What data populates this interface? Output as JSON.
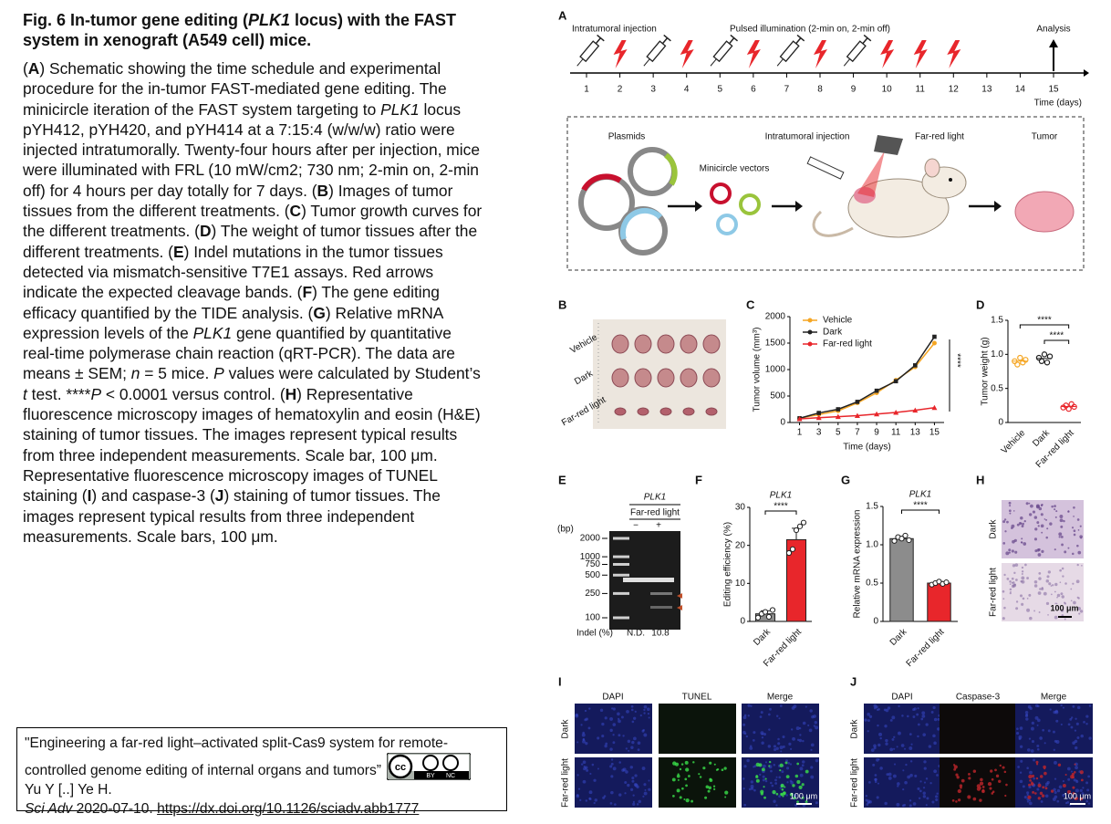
{
  "caption": {
    "title": [
      {
        "text": "Fig. 6 In-tumor gene editing ("
      },
      {
        "text": "PLK1",
        "style": "i"
      },
      {
        "text": " locus) with the FAST system in xenograft (A549 cell) mice."
      }
    ],
    "body": [
      {
        "text": "("
      },
      {
        "text": "A",
        "style": "b"
      },
      {
        "text": ") Schematic showing the time schedule and experimental procedure for the in-tumor FAST-mediated gene editing. The minicircle iteration of the FAST system targeting to "
      },
      {
        "text": "PLK1",
        "style": "i"
      },
      {
        "text": " locus pYH412, pYH420, and pYH414 at a 7:15:4 (w/w/w) ratio were injected intratumorally. Twenty-four hours after per injection, mice were illuminated with FRL (10 mW/cm2; 730 nm; 2-min on, 2-min off) for 4 hours per day totally for 7 days. ("
      },
      {
        "text": "B",
        "style": "b"
      },
      {
        "text": ") Images of tumor tissues from the different treatments. ("
      },
      {
        "text": "C",
        "style": "b"
      },
      {
        "text": ") Tumor growth curves for the different treatments. ("
      },
      {
        "text": "D",
        "style": "b"
      },
      {
        "text": ") The weight of tumor tissues after the different treatments. ("
      },
      {
        "text": "E",
        "style": "b"
      },
      {
        "text": ") Indel mutations in the tumor tissues detected via mismatch-sensitive T7E1 assays. Red arrows indicate the expected cleavage bands. ("
      },
      {
        "text": "F",
        "style": "b"
      },
      {
        "text": ") The gene editing efficacy quantified by the TIDE analysis. ("
      },
      {
        "text": "G",
        "style": "b"
      },
      {
        "text": ") Relative mRNA expression levels of the "
      },
      {
        "text": "PLK1",
        "style": "i"
      },
      {
        "text": " gene quantified by quantitative real-time polymerase chain reaction (qRT-PCR). The data are means ± SEM; "
      },
      {
        "text": "n",
        "style": "i"
      },
      {
        "text": " = 5 mice. "
      },
      {
        "text": "P",
        "style": "i"
      },
      {
        "text": " values were calculated by Student’s "
      },
      {
        "text": "t",
        "style": "i"
      },
      {
        "text": " test. ****"
      },
      {
        "text": "P",
        "style": "i"
      },
      {
        "text": " < 0.0001 versus control. ("
      },
      {
        "text": "H",
        "style": "b"
      },
      {
        "text": ") Representative fluorescence microscopy images of hematoxylin and eosin (H&E) staining of tumor tissues. The images represent typical results from three independent measurements. Scale bar, 100 μm. Representative fluorescence microscopy images of TUNEL staining ("
      },
      {
        "text": "I",
        "style": "b"
      },
      {
        "text": ") and caspase-3 ("
      },
      {
        "text": "J",
        "style": "b"
      },
      {
        "text": ") staining of tumor tissues. The images represent typical results from three independent measurements. Scale bars, 100 μm."
      }
    ]
  },
  "citation": {
    "title": "\"Engineering a far-red light–activated split-Cas9 system for remote-controlled genome editing of internal organs and tumors”",
    "authors": "Yu Y [..] Ye H.",
    "journal": "Sci Adv",
    "date": "2020-07-10.",
    "doi": "https://dx.doi.org/10.1126/sciadv.abb1777",
    "license": [
      "BY",
      "NC"
    ]
  },
  "figure": {
    "timeline": {
      "panel": "A",
      "header": [
        "Intratumoral injection",
        "Pulsed illumination (2-min on, 2-min off)",
        "Analysis"
      ],
      "days": [
        1,
        2,
        3,
        4,
        5,
        6,
        7,
        8,
        9,
        10,
        11,
        12,
        13,
        14,
        15
      ],
      "injection_days": [
        1,
        3,
        5,
        7,
        9
      ],
      "illumination_days": [
        2,
        4,
        6,
        8,
        10,
        11,
        12
      ],
      "analysis_day": 15,
      "x_label": "Time (days)"
    },
    "schematic": {
      "labels": [
        "Plasmids",
        "Minicircle vectors",
        "Intratumoral injection",
        "Far-red light",
        "Tumor"
      ]
    },
    "photo": {
      "panel": "B",
      "rows": [
        "Vehicle",
        "Dark",
        "Far-red light"
      ]
    },
    "gel": {
      "panel": "E",
      "title": "PLK1",
      "group": "Far-red light",
      "lanes": [
        "−",
        "+"
      ],
      "unit": "(bp)",
      "ladder": [
        2000,
        1000,
        750,
        500,
        250,
        100
      ],
      "indel_label": "Indel (%)",
      "indel": [
        "N.D.",
        "10.8"
      ]
    },
    "he": {
      "panel": "H",
      "rows": [
        "Dark",
        "Far-red light"
      ],
      "scale": "100 μm"
    },
    "tunel": {
      "panel": "I",
      "columns": [
        "DAPI",
        "TUNEL",
        "Merge"
      ],
      "rows": [
        "Dark",
        "Far-red light"
      ],
      "scale": "100 μm"
    },
    "caspase": {
      "panel": "J",
      "columns": [
        "DAPI",
        "Caspase-3",
        "Merge"
      ],
      "rows": [
        "Dark",
        "Far-red light"
      ],
      "scale": "100 μm"
    }
  },
  "chart_data": [
    {
      "type": "line",
      "panel": "C",
      "x": [
        1,
        3,
        5,
        7,
        9,
        11,
        13,
        15
      ],
      "xlim": [
        0,
        16
      ],
      "xticks": [
        1,
        3,
        5,
        7,
        9,
        11,
        13,
        15
      ],
      "ylim": [
        0,
        2000
      ],
      "yticks": [
        0,
        500,
        1000,
        1500,
        2000
      ],
      "x_label": "Time (days)",
      "y_label": "Tumor volume (mm³)",
      "annotation": "****",
      "legend": "top-left",
      "series": [
        {
          "name": "Vehicle",
          "color": "#f5a623",
          "values": [
            80,
            150,
            220,
            370,
            560,
            800,
            1050,
            1500
          ]
        },
        {
          "name": "Dark",
          "color": "#222222",
          "values": [
            80,
            180,
            250,
            390,
            600,
            780,
            1080,
            1620
          ]
        },
        {
          "name": "Far-red light",
          "color": "#e8262b",
          "values": [
            70,
            90,
            110,
            130,
            160,
            190,
            230,
            280
          ]
        }
      ]
    },
    {
      "type": "strip",
      "panel": "D",
      "categories": [
        "Vehicle",
        "Dark",
        "Far-red light"
      ],
      "colors": [
        "#f5a623",
        "#222222",
        "#e8262b"
      ],
      "points": [
        [
          0.9,
          0.85,
          0.95,
          0.88,
          0.92
        ],
        [
          0.95,
          0.9,
          1.0,
          0.88,
          0.97
        ],
        [
          0.22,
          0.25,
          0.2,
          0.27,
          0.23
        ]
      ],
      "ylim": [
        0,
        1.5
      ],
      "yticks": [
        0,
        0.5,
        {
          "value": 1,
          "label": "1.0"
        },
        1.5
      ],
      "y_label": "Tumor weight (g)",
      "annotations": [
        "****",
        "****"
      ]
    },
    {
      "type": "bar",
      "panel": "F",
      "title": "PLK1",
      "categories": [
        "Dark",
        "Far-red light"
      ],
      "values": [
        2,
        21.5
      ],
      "errors": [
        0.8,
        3
      ],
      "points": [
        [
          1,
          2,
          2.5,
          1.2,
          3
        ],
        [
          18,
          19,
          24,
          25,
          26
        ]
      ],
      "colors": [
        "#8c8c8c",
        "#e8262b"
      ],
      "ylim": [
        0,
        30
      ],
      "yticks": [
        0,
        10,
        20,
        30
      ],
      "y_label": "Editing efficiency (%)",
      "annotation": "****"
    },
    {
      "type": "bar",
      "panel": "G",
      "title": "PLK1",
      "categories": [
        "Dark",
        "Far-red light"
      ],
      "values": [
        1.08,
        0.5
      ],
      "errors": [
        0.03,
        0.02
      ],
      "points": [
        [
          1.05,
          1.1,
          1.08,
          1.12,
          1.06
        ],
        [
          0.48,
          0.5,
          0.52,
          0.49,
          0.51
        ]
      ],
      "colors": [
        "#8c8c8c",
        "#e8262b"
      ],
      "ylim": [
        0,
        1.5
      ],
      "yticks": [
        0,
        0.5,
        {
          "value": 1,
          "label": "1.0"
        },
        1.5
      ],
      "y_label": "Relative mRNA expression",
      "annotation": "****"
    }
  ]
}
